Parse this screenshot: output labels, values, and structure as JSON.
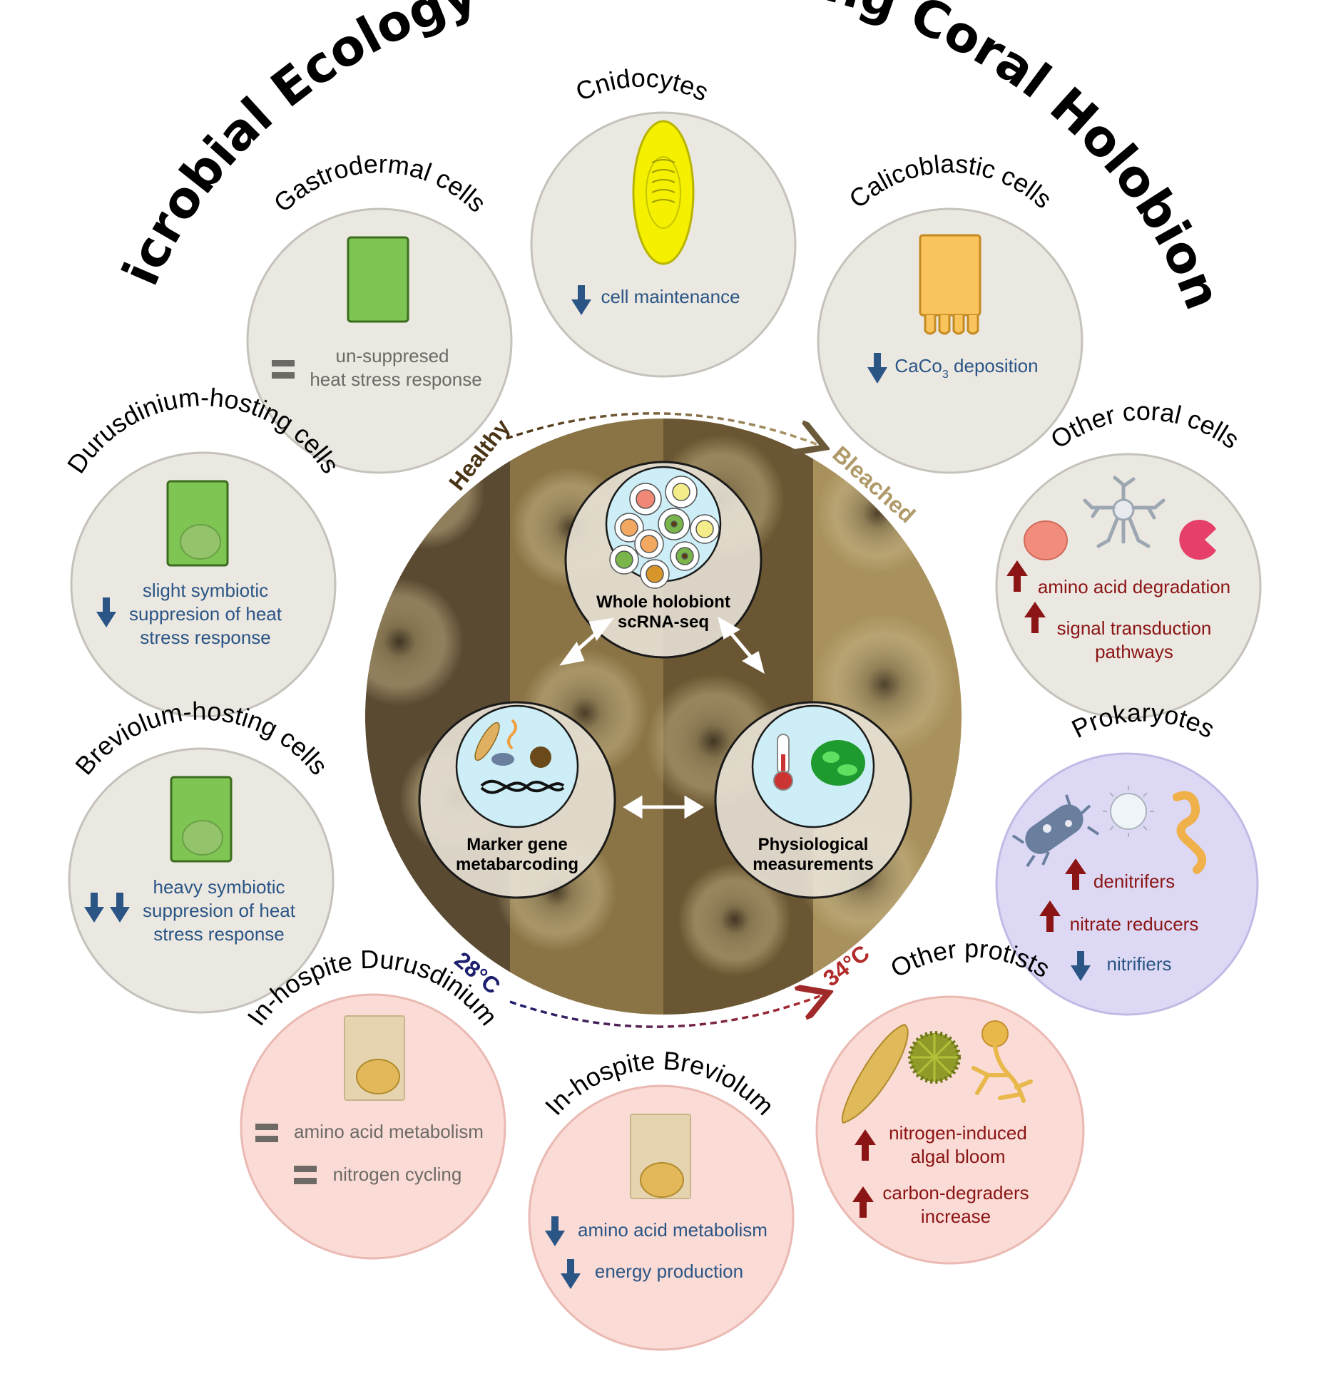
{
  "title": "Microbial Ecology of a Bleaching Coral Holobiont",
  "colors": {
    "grey_circle": "#ebe8e2",
    "pink_circle": "#fadbd6",
    "lavender_circle": "#ddd9f5",
    "down_arrow": "#2a5585",
    "up_arrow": "#8b1414",
    "equal_sign": "#6d6a66"
  },
  "axis": {
    "top_start": "Healthy",
    "top_end": "Bleached",
    "bottom_start": "28°C",
    "bottom_end": "34°C"
  },
  "hubs": {
    "scrna": {
      "line1": "Whole holobiont",
      "line2": "scRNA-seq"
    },
    "barcoding": {
      "line1": "Marker gene",
      "line2": "metabarcoding"
    },
    "physio": {
      "line1": "Physiological",
      "line2": "measurements"
    }
  },
  "panels": {
    "cnidocytes": {
      "title": "Cnidocytes",
      "icon": "cnidocyte-icon",
      "effect": "down",
      "line1": "cell maintenance"
    },
    "gastrodermal": {
      "title": "Gastrodermal cells",
      "icon": "gastrodermal-cell-icon",
      "effect": "equal",
      "line1": "un-suppresed",
      "line2": "heat stress response"
    },
    "calicoblastic": {
      "title": "Calicoblastic cells",
      "icon": "calicoblastic-cell-icon",
      "effect": "down",
      "line1_main": "CaCo",
      "line1_sub": "3",
      "line1_rest": " deposition"
    },
    "durusdinium_hosting": {
      "title": "Durusdinium-hosting cells",
      "icon": "durusdinium-hosting-cell-icon",
      "effect": "down",
      "line1": "slight symbiotic",
      "line2": "suppresion of heat",
      "line3": "stress response"
    },
    "breviolum_hosting": {
      "title": "Breviolum-hosting cells",
      "icon": "breviolum-hosting-cell-icon",
      "effect": "double-down",
      "line1": "heavy symbiotic",
      "line2": "suppresion of heat",
      "line3": "stress response"
    },
    "other_coral": {
      "title": "Other coral cells",
      "icons": [
        "round-cell-icon",
        "neuron-icon",
        "pacman-cell-icon"
      ],
      "item1": {
        "effect": "up",
        "text": "amino acid degradation"
      },
      "item2": {
        "effect": "up",
        "line1": "signal transduction",
        "line2": "pathways"
      }
    },
    "prokaryotes": {
      "title": "Prokaryotes",
      "icons": [
        "rod-bacterium-icon",
        "coccus-icon",
        "spirillum-icon"
      ],
      "item1": {
        "effect": "up",
        "text": "denitrifers"
      },
      "item2": {
        "effect": "up",
        "text": "nitrate reducers"
      },
      "item3": {
        "effect": "down",
        "text": "nitrifiers"
      }
    },
    "other_protists": {
      "title": "Other protists",
      "icons": [
        "diatom-icon",
        "radiolarian-icon",
        "fungus-icon"
      ],
      "item1": {
        "effect": "up",
        "line1": "nitrogen-induced",
        "line2": "algal bloom"
      },
      "item2": {
        "effect": "up",
        "line1": "carbon-degraders",
        "line2": "increase"
      }
    },
    "inhospite_durusdinium": {
      "title": "In-hospite Durusdinium",
      "icon": "durusdinium-symbiont-icon",
      "item1": {
        "effect": "equal",
        "text": "amino acid metabolism"
      },
      "item2": {
        "effect": "equal",
        "text": "nitrogen cycling"
      }
    },
    "inhospite_breviolum": {
      "title": "In-hospite Breviolum",
      "icon": "breviolum-symbiont-icon",
      "item1": {
        "effect": "down",
        "text": "amino acid metabolism"
      },
      "item2": {
        "effect": "down",
        "text": "energy production"
      }
    }
  }
}
